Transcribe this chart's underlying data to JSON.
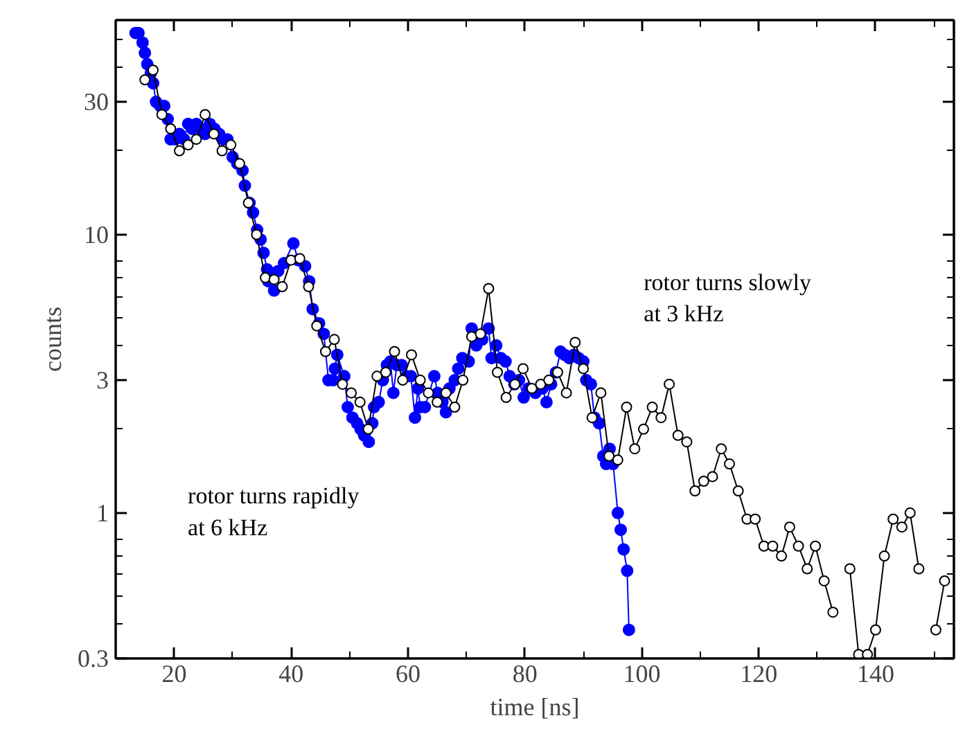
{
  "chart_data": {
    "type": "line",
    "xlabel": "time [ns]",
    "ylabel": "counts",
    "log": "y",
    "marker": "circle",
    "line_style": "solid",
    "grid": false,
    "xlim": [
      10,
      153.4
    ],
    "ylim": [
      0.3,
      59
    ],
    "xticks": [
      {
        "value": 10,
        "label": null
      },
      20,
      {
        "value": 30,
        "label": null
      },
      40,
      {
        "value": 50,
        "label": null
      },
      60,
      {
        "value": 70,
        "label": null
      },
      80,
      {
        "value": 90,
        "label": null
      },
      100,
      {
        "value": 110,
        "label": null
      },
      120,
      {
        "value": 130,
        "label": null
      },
      140,
      {
        "value": 150,
        "label": null
      }
    ],
    "yticks": [
      0.3,
      {
        "value": 0.4,
        "label": null
      },
      {
        "value": 0.5,
        "label": null
      },
      {
        "value": 0.6,
        "label": null
      },
      {
        "value": 0.7,
        "label": null
      },
      {
        "value": 0.8,
        "label": null
      },
      1,
      {
        "value": 2,
        "label": null
      },
      3,
      {
        "value": 4,
        "label": null
      },
      {
        "value": 5,
        "label": null
      },
      {
        "value": 6,
        "label": null
      },
      {
        "value": 7,
        "label": null
      },
      {
        "value": 8,
        "label": null
      },
      10,
      {
        "value": 20,
        "label": null
      },
      30,
      {
        "value": 40,
        "label": null
      },
      {
        "value": 50,
        "label": null
      }
    ],
    "annotations": [
      "rotor turns slowly\nat 3 kHz",
      "rotor turns rapidly\nat 6 kHz"
    ],
    "series": [
      {
        "color": "#0000ff",
        "x": [
          13.4,
          13.9,
          14.6,
          15.0,
          15.4,
          16.0,
          16.4,
          16.9,
          17.6,
          18.3,
          18.9,
          19.4,
          20.2,
          20.9,
          21.7,
          22.4,
          23.1,
          23.8,
          24.6,
          25.3,
          26.1,
          26.9,
          27.7,
          28.4,
          29.1,
          30.0,
          30.8,
          31.7,
          32.1,
          32.9,
          33.5,
          34.2,
          34.8,
          35.3,
          35.9,
          36.1,
          36.8,
          37.1,
          37.8,
          38.8,
          40.4,
          41.2,
          42.4,
          43.1,
          43.7,
          44.8,
          45.6,
          46.4,
          47.2,
          47.5,
          47.9,
          49.1,
          49.7,
          50.5,
          51.3,
          51.9,
          52.5,
          53.3,
          53.9,
          54.2,
          55.0,
          55.7,
          56.4,
          57.0,
          57.5,
          58.1,
          58.9,
          59.7,
          60.5,
          61.2,
          61.7,
          62.1,
          62.9,
          64.5,
          65.1,
          65.9,
          66.5,
          67.1,
          68.0,
          68.6,
          69.3,
          70.4,
          70.9,
          71.7,
          72.7,
          73.8,
          74.3,
          75.1,
          75.9,
          76.7,
          77.4,
          78.2,
          79.0,
          79.8,
          80.6,
          81.8,
          83.0,
          83.7,
          84.5,
          85.3,
          86.1,
          86.8,
          87.6,
          88.4,
          89.2,
          90.0,
          90.5,
          91.3,
          91.9,
          92.7,
          93.4,
          93.9,
          94.5,
          95.1,
          95.9,
          96.4,
          96.9,
          97.5,
          97.8
        ],
        "values": [
          53,
          53,
          49,
          45,
          41,
          38,
          35,
          30,
          29,
          29,
          26,
          22,
          22,
          23,
          22,
          25,
          24,
          25,
          24,
          23,
          25,
          24,
          23,
          22,
          22,
          19,
          18,
          17,
          15,
          13,
          12,
          10.4,
          9.6,
          8.6,
          7.5,
          6.8,
          7.1,
          6.3,
          7.4,
          7.9,
          9.3,
          8.1,
          7.7,
          6.8,
          5.4,
          4.8,
          4.4,
          3.0,
          3.0,
          3.3,
          3.7,
          3.1,
          2.4,
          2.2,
          2.1,
          2.0,
          1.9,
          1.8,
          2.1,
          2.4,
          2.5,
          3.0,
          3.4,
          3.5,
          2.7,
          3.4,
          3.4,
          3.1,
          3.1,
          2.2,
          2.8,
          2.4,
          2.4,
          3.1,
          2.7,
          2.5,
          2.3,
          2.8,
          3.0,
          3.3,
          3.6,
          3.5,
          4.6,
          4.0,
          4.2,
          4.6,
          3.6,
          4.0,
          3.6,
          3.5,
          3.1,
          2.9,
          3.0,
          2.6,
          2.8,
          2.7,
          2.8,
          2.5,
          2.9,
          3.2,
          3.8,
          3.7,
          3.6,
          3.7,
          3.6,
          3.5,
          3.0,
          2.9,
          2.2,
          2.1,
          1.6,
          1.5,
          1.7,
          1.5,
          1.0,
          0.87,
          0.74,
          0.62,
          0.38
        ]
      },
      {
        "color": "#000000",
        "x": [
          15.0,
          16.4,
          17.9,
          19.4,
          20.9,
          22.4,
          23.8,
          25.3,
          26.8,
          28.2,
          29.7,
          31.2,
          32.7,
          34.1,
          35.6,
          37.1,
          38.5,
          40.0,
          41.5,
          43.0,
          44.4,
          45.9,
          47.4,
          48.8,
          50.3,
          51.8,
          53.2,
          54.7,
          56.2,
          57.7,
          59.1,
          60.6,
          62.1,
          63.5,
          65.0,
          66.5,
          68.0,
          69.4,
          70.9,
          72.4,
          73.8,
          75.3,
          76.8,
          78.3,
          79.7,
          81.2,
          82.7,
          84.1,
          85.6,
          87.1,
          88.6,
          90.0,
          91.5,
          93.0,
          94.4,
          95.9,
          97.4,
          98.8,
          100.3,
          101.8,
          103.3,
          104.7,
          106.2,
          107.7,
          109.1,
          110.6,
          112.1,
          113.6,
          115.0,
          116.5,
          118.0,
          119.4,
          120.9,
          122.4,
          123.9,
          125.3,
          126.8,
          128.3,
          129.7,
          131.2,
          132.7,
          134.2,
          135.6,
          137.1,
          138.6,
          140.0,
          141.5,
          143.0,
          144.5,
          145.9,
          147.4,
          148.9,
          150.3,
          151.8
        ],
        "values": [
          36,
          39,
          27,
          24,
          20,
          21,
          22,
          27,
          23,
          20,
          21,
          18,
          13,
          10,
          7.0,
          6.9,
          6.5,
          8.1,
          8.2,
          6.5,
          4.7,
          3.8,
          4.2,
          2.9,
          2.7,
          2.5,
          2.0,
          3.1,
          3.2,
          3.8,
          3.0,
          3.7,
          3.0,
          2.7,
          2.5,
          2.7,
          2.4,
          3.0,
          4.3,
          4.4,
          6.4,
          3.2,
          2.6,
          2.9,
          3.3,
          2.8,
          2.9,
          3.0,
          3.2,
          2.7,
          4.1,
          3.3,
          2.2,
          2.7,
          1.6,
          1.55,
          2.4,
          1.7,
          2.0,
          2.4,
          2.2,
          2.9,
          1.9,
          1.8,
          1.2,
          1.3,
          1.35,
          1.7,
          1.5,
          1.2,
          0.95,
          0.95,
          0.76,
          0.76,
          0.7,
          0.89,
          0.76,
          0.63,
          0.76,
          0.57,
          0.44,
          null,
          0.63,
          0.31,
          0.31,
          0.38,
          0.7,
          0.95,
          0.89,
          1.0,
          0.63,
          null,
          0.38,
          0.57
        ]
      }
    ]
  }
}
